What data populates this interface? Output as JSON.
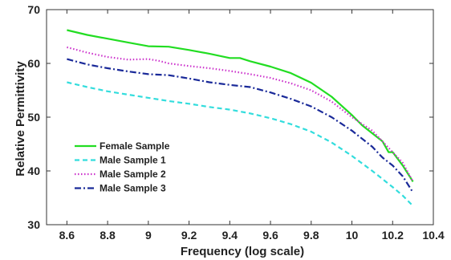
{
  "chart_data": {
    "type": "line",
    "title": "",
    "xlabel": "Frequency (log scale)",
    "ylabel": "Relative Permittivity",
    "xlim": [
      8.5,
      10.4
    ],
    "ylim": [
      30,
      70
    ],
    "xticks": [
      "8.6",
      "8.8",
      "9",
      "9.2",
      "9.4",
      "9.6",
      "9.8",
      "10",
      "10.2",
      "10.4"
    ],
    "yticks": [
      "30",
      "40",
      "50",
      "60",
      "70"
    ],
    "grid": false,
    "legend_position": "lower-left",
    "series": [
      {
        "name": "Female Sample",
        "color": "#22dd22",
        "style": "solid",
        "x": [
          8.6,
          8.7,
          8.8,
          8.9,
          9.0,
          9.1,
          9.2,
          9.3,
          9.4,
          9.45,
          9.5,
          9.6,
          9.7,
          9.8,
          9.9,
          10.0,
          10.05,
          10.1,
          10.15,
          10.18,
          10.2,
          10.25,
          10.3
        ],
        "y": [
          66.2,
          65.3,
          64.6,
          63.9,
          63.2,
          63.1,
          62.5,
          61.8,
          61.0,
          61.0,
          60.4,
          59.4,
          58.2,
          56.4,
          53.8,
          50.4,
          48.5,
          47.0,
          45.5,
          43.5,
          43.5,
          41.0,
          38.0
        ]
      },
      {
        "name": "Male Sample 1",
        "color": "#33dddd",
        "style": "dashed",
        "x": [
          8.6,
          8.7,
          8.8,
          8.9,
          9.0,
          9.1,
          9.2,
          9.3,
          9.4,
          9.5,
          9.6,
          9.7,
          9.8,
          9.9,
          10.0,
          10.1,
          10.2,
          10.25,
          10.3
        ],
        "y": [
          56.5,
          55.6,
          54.8,
          54.2,
          53.6,
          53.0,
          52.5,
          51.9,
          51.4,
          50.7,
          49.8,
          48.7,
          47.3,
          45.3,
          42.8,
          40.0,
          37.0,
          35.4,
          33.5
        ]
      },
      {
        "name": "Male Sample 2",
        "color": "#cc33cc",
        "style": "dotted",
        "x": [
          8.6,
          8.7,
          8.8,
          8.9,
          9.0,
          9.05,
          9.1,
          9.2,
          9.3,
          9.4,
          9.5,
          9.6,
          9.7,
          9.8,
          9.9,
          10.0,
          10.1,
          10.2,
          10.25,
          10.3
        ],
        "y": [
          63.0,
          62.0,
          61.2,
          60.7,
          60.8,
          60.5,
          60.0,
          59.5,
          59.1,
          58.6,
          58.0,
          57.3,
          56.3,
          55.0,
          52.9,
          50.0,
          47.5,
          43.5,
          41.5,
          38.0
        ]
      },
      {
        "name": "Male Sample 3",
        "color": "#1a2a99",
        "style": "dashdot",
        "x": [
          8.6,
          8.7,
          8.8,
          8.9,
          9.0,
          9.1,
          9.2,
          9.3,
          9.4,
          9.5,
          9.6,
          9.7,
          9.8,
          9.9,
          10.0,
          10.1,
          10.15,
          10.2,
          10.25,
          10.3
        ],
        "y": [
          60.8,
          59.8,
          59.1,
          58.5,
          58.0,
          57.8,
          57.2,
          56.5,
          56.0,
          55.6,
          54.6,
          53.4,
          52.0,
          50.0,
          47.5,
          44.5,
          42.5,
          41.0,
          39.0,
          36.0
        ]
      }
    ]
  }
}
